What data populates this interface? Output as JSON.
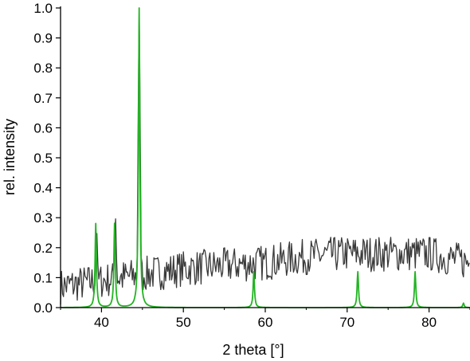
{
  "chart_data": {
    "type": "line",
    "xlabel": "2 theta [°]",
    "ylabel": "rel. intensity",
    "xlim": [
      35,
      85
    ],
    "ylim": [
      0.0,
      1.0
    ],
    "x_ticks": [
      "40",
      "50",
      "60",
      "70",
      "80"
    ],
    "y_ticks": [
      "0.0",
      "0.1",
      "0.2",
      "0.3",
      "0.4",
      "0.5",
      "0.6",
      "0.7",
      "0.8",
      "0.9",
      "1.0"
    ],
    "grid": false,
    "legend": "none",
    "colors": {
      "measured": "#3a3a3a",
      "reference": "#22b422"
    },
    "series": [
      {
        "style": "noisy-line",
        "color": "#3a3a3a",
        "baseline": [
          [
            35,
            0.07
          ],
          [
            40,
            0.09
          ],
          [
            45,
            0.11
          ],
          [
            50,
            0.13
          ],
          [
            55,
            0.14
          ],
          [
            60,
            0.15
          ],
          [
            65,
            0.17
          ],
          [
            70,
            0.18
          ],
          [
            75,
            0.18
          ],
          [
            80,
            0.18
          ],
          [
            85,
            0.15
          ]
        ],
        "noise": 0.06,
        "peaks": [
          {
            "x": 39.4,
            "y": 0.26
          },
          {
            "x": 41.7,
            "y": 0.3
          },
          {
            "x": 44.6,
            "y": 1.0
          }
        ]
      },
      {
        "style": "reference-peaks",
        "color": "#22b422",
        "peaks": [
          {
            "x": 39.3,
            "y": 0.28
          },
          {
            "x": 41.6,
            "y": 0.28
          },
          {
            "x": 44.6,
            "y": 1.0
          },
          {
            "x": 58.6,
            "y": 0.12
          },
          {
            "x": 71.3,
            "y": 0.12
          },
          {
            "x": 78.3,
            "y": 0.12
          },
          {
            "x": 84.2,
            "y": 0.015
          }
        ]
      }
    ]
  }
}
